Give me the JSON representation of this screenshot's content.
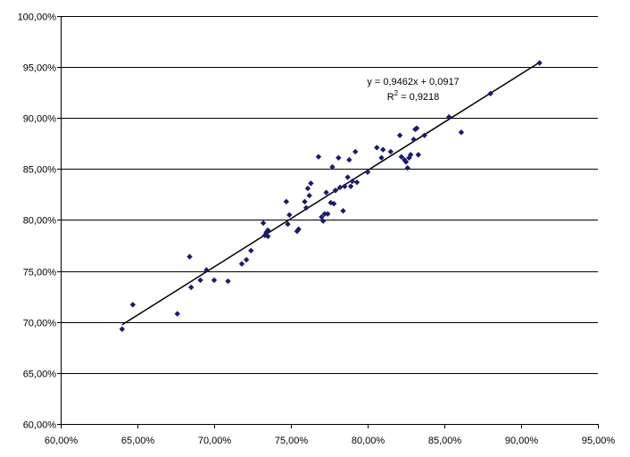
{
  "chart_data": {
    "type": "scatter",
    "title": "",
    "xlabel": "",
    "ylabel": "",
    "xlim": [
      0.6,
      0.95
    ],
    "ylim": [
      0.6,
      1.0
    ],
    "x_ticks": [
      0.6,
      0.65,
      0.7,
      0.75,
      0.8,
      0.85,
      0.9,
      0.95
    ],
    "y_ticks": [
      0.6,
      0.65,
      0.7,
      0.75,
      0.8,
      0.85,
      0.9,
      0.95,
      1.0
    ],
    "x_tick_labels": [
      "60,00%",
      "65,00%",
      "70,00%",
      "75,00%",
      "80,00%",
      "85,00%",
      "90,00%",
      "95,00%"
    ],
    "y_tick_labels": [
      "60,00%",
      "65,00%",
      "70,00%",
      "75,00%",
      "80,00%",
      "85,00%",
      "90,00%",
      "95,00%",
      "100,00%"
    ],
    "grid": {
      "horizontal": true,
      "vertical": false
    },
    "marker_color": "#1a1a6e",
    "line_color": "#000000",
    "trendline": {
      "slope": 0.9462,
      "intercept": 0.0917,
      "x_range": [
        0.64,
        0.912
      ],
      "equation": "y = 0,9462x + 0,0917",
      "r2_prefix": "R",
      "r2_sup": "2",
      "r2_value": " = 0,9218"
    },
    "points": [
      {
        "x": 0.64,
        "y": 0.693
      },
      {
        "x": 0.647,
        "y": 0.717
      },
      {
        "x": 0.676,
        "y": 0.708
      },
      {
        "x": 0.684,
        "y": 0.764
      },
      {
        "x": 0.685,
        "y": 0.734
      },
      {
        "x": 0.691,
        "y": 0.741
      },
      {
        "x": 0.695,
        "y": 0.751
      },
      {
        "x": 0.7,
        "y": 0.741
      },
      {
        "x": 0.709,
        "y": 0.74
      },
      {
        "x": 0.718,
        "y": 0.757
      },
      {
        "x": 0.721,
        "y": 0.761
      },
      {
        "x": 0.724,
        "y": 0.77
      },
      {
        "x": 0.732,
        "y": 0.797
      },
      {
        "x": 0.733,
        "y": 0.785
      },
      {
        "x": 0.734,
        "y": 0.788
      },
      {
        "x": 0.735,
        "y": 0.79
      },
      {
        "x": 0.735,
        "y": 0.784
      },
      {
        "x": 0.747,
        "y": 0.818
      },
      {
        "x": 0.748,
        "y": 0.796
      },
      {
        "x": 0.749,
        "y": 0.805
      },
      {
        "x": 0.754,
        "y": 0.789
      },
      {
        "x": 0.755,
        "y": 0.791
      },
      {
        "x": 0.759,
        "y": 0.818
      },
      {
        "x": 0.76,
        "y": 0.812
      },
      {
        "x": 0.761,
        "y": 0.831
      },
      {
        "x": 0.762,
        "y": 0.824
      },
      {
        "x": 0.763,
        "y": 0.836
      },
      {
        "x": 0.768,
        "y": 0.862
      },
      {
        "x": 0.77,
        "y": 0.803
      },
      {
        "x": 0.771,
        "y": 0.799
      },
      {
        "x": 0.772,
        "y": 0.806
      },
      {
        "x": 0.773,
        "y": 0.827
      },
      {
        "x": 0.774,
        "y": 0.806
      },
      {
        "x": 0.776,
        "y": 0.817
      },
      {
        "x": 0.777,
        "y": 0.852
      },
      {
        "x": 0.778,
        "y": 0.816
      },
      {
        "x": 0.779,
        "y": 0.829
      },
      {
        "x": 0.781,
        "y": 0.861
      },
      {
        "x": 0.782,
        "y": 0.832
      },
      {
        "x": 0.784,
        "y": 0.809
      },
      {
        "x": 0.785,
        "y": 0.833
      },
      {
        "x": 0.787,
        "y": 0.842
      },
      {
        "x": 0.788,
        "y": 0.859
      },
      {
        "x": 0.789,
        "y": 0.833
      },
      {
        "x": 0.79,
        "y": 0.838
      },
      {
        "x": 0.792,
        "y": 0.867
      },
      {
        "x": 0.793,
        "y": 0.837
      },
      {
        "x": 0.8,
        "y": 0.847
      },
      {
        "x": 0.806,
        "y": 0.871
      },
      {
        "x": 0.809,
        "y": 0.861
      },
      {
        "x": 0.81,
        "y": 0.869
      },
      {
        "x": 0.815,
        "y": 0.867
      },
      {
        "x": 0.821,
        "y": 0.883
      },
      {
        "x": 0.822,
        "y": 0.862
      },
      {
        "x": 0.824,
        "y": 0.859
      },
      {
        "x": 0.825,
        "y": 0.857
      },
      {
        "x": 0.826,
        "y": 0.851
      },
      {
        "x": 0.827,
        "y": 0.861
      },
      {
        "x": 0.828,
        "y": 0.864
      },
      {
        "x": 0.83,
        "y": 0.879
      },
      {
        "x": 0.831,
        "y": 0.889
      },
      {
        "x": 0.832,
        "y": 0.89
      },
      {
        "x": 0.833,
        "y": 0.864
      },
      {
        "x": 0.837,
        "y": 0.883
      },
      {
        "x": 0.853,
        "y": 0.901
      },
      {
        "x": 0.861,
        "y": 0.886
      },
      {
        "x": 0.88,
        "y": 0.924
      },
      {
        "x": 0.912,
        "y": 0.954
      }
    ]
  }
}
